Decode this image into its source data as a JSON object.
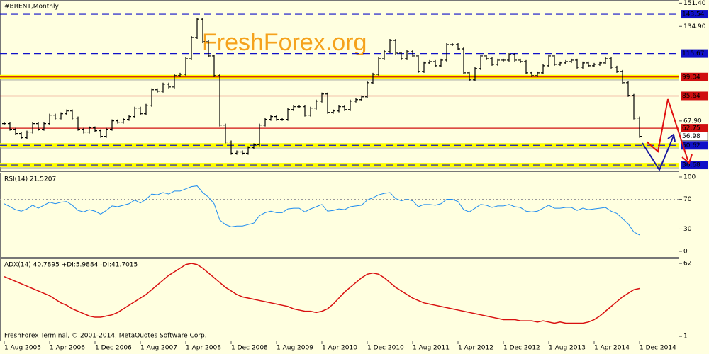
{
  "chart_data": [
    {
      "type": "bars",
      "title": "#BRENT,Monthly",
      "watermark": "FreshForex.org",
      "color": "#000000",
      "x": [
        "1 Aug 2005",
        "1 Sep 2005",
        "1 Oct 2005",
        "1 Nov 2005",
        "1 Dec 2005",
        "1 Jan 2006",
        "1 Feb 2006",
        "1 Mar 2006",
        "1 Apr 2006",
        "1 May 2006",
        "1 Jun 2006",
        "1 Jul 2006",
        "1 Aug 2006",
        "1 Sep 2006",
        "1 Oct 2006",
        "1 Nov 2006",
        "1 Dec 2006",
        "1 Jan 2007",
        "1 Feb 2007",
        "1 Mar 2007",
        "1 Apr 2007",
        "1 May 2007",
        "1 Jun 2007",
        "1 Jul 2007",
        "1 Aug 2007",
        "1 Sep 2007",
        "1 Oct 2007",
        "1 Nov 2007",
        "1 Dec 2007",
        "1 Jan 2008",
        "1 Feb 2008",
        "1 Mar 2008",
        "1 Apr 2008",
        "1 May 2008",
        "1 Jun 2008",
        "1 Jul 2008",
        "1 Aug 2008",
        "1 Sep 2008",
        "1 Oct 2008",
        "1 Nov 2008",
        "1 Dec 2008",
        "1 Jan 2009",
        "1 Feb 2009",
        "1 Mar 2009",
        "1 Apr 2009",
        "1 May 2009",
        "1 Jun 2009",
        "1 Jul 2009",
        "1 Aug 2009",
        "1 Sep 2009",
        "1 Oct 2009",
        "1 Nov 2009",
        "1 Dec 2009",
        "1 Jan 2010",
        "1 Feb 2010",
        "1 Mar 2010",
        "1 Apr 2010",
        "1 May 2010",
        "1 Jun 2010",
        "1 Jul 2010",
        "1 Aug 2010",
        "1 Sep 2010",
        "1 Oct 2010",
        "1 Nov 2010",
        "1 Dec 2010",
        "1 Jan 2011",
        "1 Feb 2011",
        "1 Mar 2011",
        "1 Apr 2011",
        "1 May 2011",
        "1 Jun 2011",
        "1 Jul 2011",
        "1 Aug 2011",
        "1 Sep 2011",
        "1 Oct 2011",
        "1 Nov 2011",
        "1 Dec 2011",
        "1 Jan 2012",
        "1 Feb 2012",
        "1 Mar 2012",
        "1 Apr 2012",
        "1 May 2012",
        "1 Jun 2012",
        "1 Jul 2012",
        "1 Aug 2012",
        "1 Sep 2012",
        "1 Oct 2012",
        "1 Nov 2012",
        "1 Dec 2012",
        "1 Jan 2013",
        "1 Feb 2013",
        "1 Mar 2013",
        "1 Apr 2013",
        "1 May 2013",
        "1 Jun 2013",
        "1 Jul 2013",
        "1 Aug 2013",
        "1 Sep 2013",
        "1 Oct 2013",
        "1 Nov 2013",
        "1 Dec 2013",
        "1 Jan 2014",
        "1 Feb 2014",
        "1 Mar 2014",
        "1 Apr 2014",
        "1 May 2014",
        "1 Jun 2014",
        "1 Jul 2014",
        "1 Aug 2014",
        "1 Sep 2014",
        "1 Oct 2014",
        "1 Nov 2014",
        "1 Dec 2014"
      ],
      "values": [
        66,
        62,
        59,
        56,
        60,
        66,
        62,
        66,
        72,
        70,
        73,
        75,
        70,
        62,
        60,
        63,
        61,
        57,
        62,
        68,
        67,
        69,
        71,
        77,
        73,
        79,
        90,
        89,
        94,
        92,
        100,
        101,
        112,
        127,
        140,
        124,
        114,
        100,
        65,
        53,
        45,
        46,
        45,
        49,
        51,
        65,
        69,
        71,
        69,
        69,
        76,
        78,
        78,
        72,
        77,
        82,
        87,
        74,
        75,
        78,
        76,
        82,
        83,
        85,
        95,
        101,
        112,
        117,
        125,
        116,
        112,
        117,
        114,
        103,
        109,
        110,
        107,
        111,
        122,
        122,
        119,
        102,
        97,
        105,
        114,
        112,
        108,
        111,
        111,
        115,
        111,
        110,
        102,
        100,
        102,
        107,
        114,
        108,
        109,
        110,
        111,
        106,
        109,
        107,
        108,
        109,
        112,
        106,
        103,
        95,
        86,
        70,
        57
      ],
      "xticks": [
        "1 Aug 2005",
        "1 Apr 2006",
        "1 Dec 2006",
        "1 Aug 2007",
        "1 Apr 2008",
        "1 Dec 2008",
        "1 Aug 2009",
        "1 Apr 2010",
        "1 Dec 2010",
        "1 Aug 2011",
        "1 Apr 2012",
        "1 Dec 2012",
        "1 Aug 2013",
        "1 Apr 2014",
        "1 Dec 2014"
      ],
      "ylim": [
        31.7,
        153.6
      ],
      "yticks": [
        {
          "value": 151.4,
          "label": "151.40"
        },
        {
          "value": 134.9,
          "label": "134.90"
        },
        {
          "value": 67.9,
          "label": "67.90"
        }
      ],
      "levels": [
        {
          "value": 143.54,
          "color": "#1010c8",
          "style": "dashed"
        },
        {
          "value": 115.67,
          "color": "#1010c8",
          "style": "dashed"
        },
        {
          "value": 99.04,
          "color": "#d01010",
          "style": "solid",
          "highlight": true
        },
        {
          "value": 85.64,
          "color": "#d01010",
          "style": "solid"
        },
        {
          "value": 62.75,
          "color": "#d01010",
          "style": "solid"
        },
        {
          "value": 56.98,
          "color": "#ffffff",
          "style": "none"
        },
        {
          "value": 50.62,
          "color": "#1010c8",
          "style": "dashed",
          "highlight": true
        },
        {
          "value": 36.68,
          "color": "#1010c8",
          "style": "dashed",
          "highlight": true
        }
      ]
    },
    {
      "type": "line",
      "title": "RSI(14) 21.5207",
      "color": "#1e8cf0",
      "values": [
        64,
        60,
        56,
        54,
        57,
        62,
        58,
        62,
        66,
        64,
        66,
        67,
        62,
        55,
        53,
        56,
        54,
        50,
        55,
        61,
        60,
        62,
        64,
        69,
        65,
        70,
        77,
        76,
        79,
        77,
        81,
        81,
        84,
        87,
        88,
        79,
        73,
        64,
        42,
        36,
        33,
        34,
        34,
        36,
        38,
        48,
        52,
        54,
        52,
        52,
        57,
        58,
        58,
        53,
        57,
        60,
        63,
        54,
        55,
        57,
        56,
        60,
        61,
        62,
        69,
        72,
        76,
        78,
        79,
        71,
        68,
        70,
        68,
        60,
        63,
        63,
        62,
        64,
        70,
        70,
        67,
        56,
        53,
        58,
        63,
        62,
        59,
        61,
        61,
        63,
        60,
        59,
        54,
        53,
        54,
        58,
        62,
        58,
        58,
        59,
        59,
        55,
        58,
        56,
        57,
        58,
        59,
        54,
        51,
        44,
        37,
        26,
        22
      ],
      "ylim": [
        -8.6,
        105.7
      ],
      "yticks": [
        100,
        70,
        30,
        0
      ],
      "levels": [
        70,
        30
      ]
    },
    {
      "type": "line",
      "title": "ADX(14) 40.7895 +DI:5.9884 -DI:41.7015",
      "color": "#d81010",
      "values": [
        51,
        49,
        47,
        45,
        43,
        41,
        39,
        37,
        35,
        32,
        29,
        27,
        24,
        22,
        20,
        18,
        17,
        17,
        18,
        19,
        21,
        24,
        27,
        30,
        33,
        36,
        40,
        44,
        48,
        52,
        55,
        58,
        61,
        62,
        61,
        58,
        54,
        50,
        46,
        42,
        39,
        36,
        34,
        33,
        32,
        31,
        30,
        29,
        28,
        27,
        26,
        24,
        23,
        22,
        22,
        21,
        22,
        24,
        28,
        33,
        38,
        42,
        46,
        50,
        53,
        54,
        53,
        50,
        46,
        42,
        39,
        36,
        33,
        31,
        29,
        28,
        27,
        26,
        25,
        24,
        23,
        22,
        21,
        20,
        19,
        18,
        17,
        16,
        15,
        15,
        15,
        14,
        14,
        14,
        13,
        14,
        13,
        12,
        13,
        12,
        12,
        12,
        12,
        13,
        15,
        18,
        22,
        26,
        30,
        34,
        37,
        40,
        41
      ],
      "ylim": [
        -3.1,
        65.6
      ],
      "yticks": [
        62,
        1
      ],
      "footer": "FreshForex Terminal, © 2001-2014, MetaQuotes Software Corp."
    }
  ]
}
